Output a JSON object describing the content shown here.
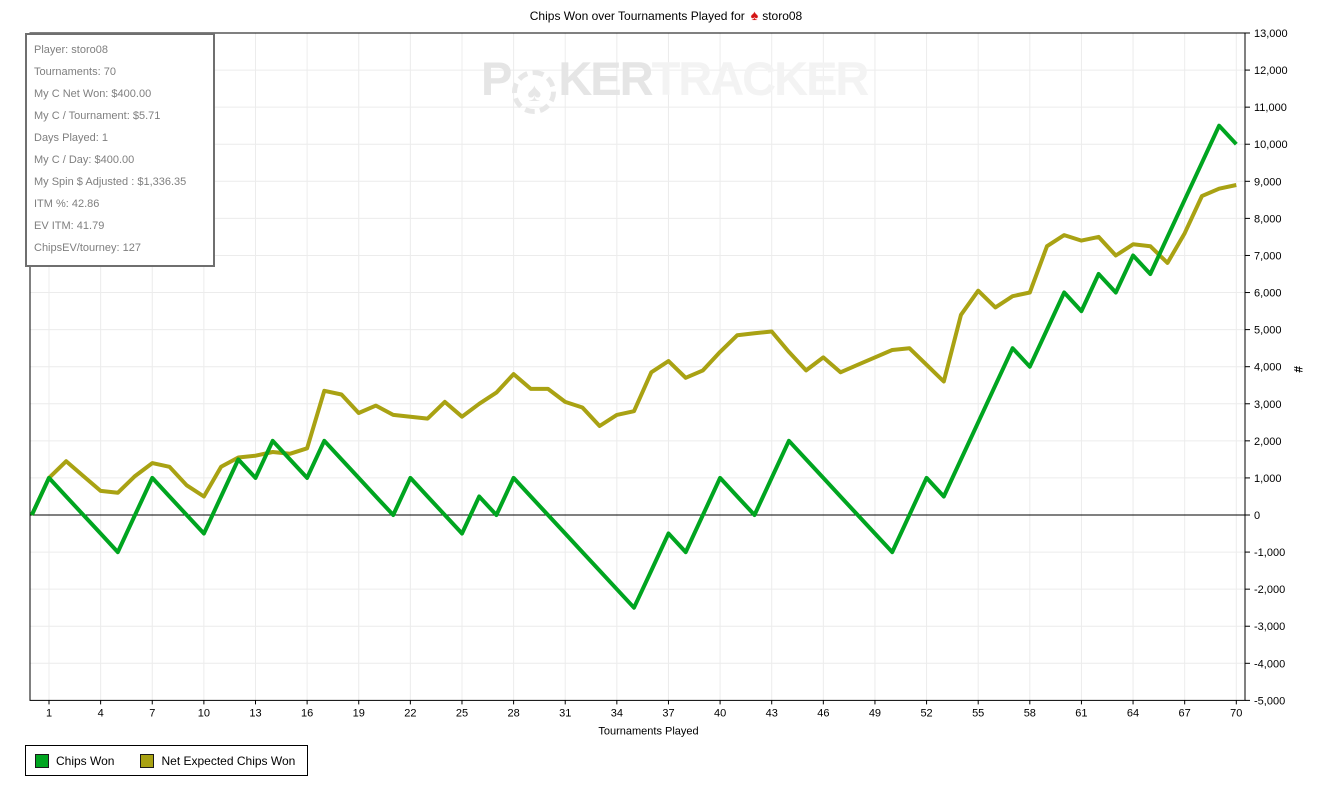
{
  "title": {
    "prefix": "Chips Won over Tournaments Played for",
    "player": "storo08",
    "icon": "red-spade"
  },
  "watermark": {
    "part1": "P",
    "chip_icon": "spade-poker-chip",
    "part2": "KER",
    "part3": "TRACKER"
  },
  "stats_box": {
    "lines": [
      "Player: storo08",
      "Tournaments: 70",
      "My C Net Won: $400.00",
      "My C / Tournament: $5.71",
      "Days Played: 1",
      "My C / Day: $400.00",
      "My Spin $ Adjusted : $1,336.35",
      "ITM %: 42.86",
      "EV ITM: 41.79",
      "ChipsEV/tourney: 127"
    ]
  },
  "legend": {
    "items": [
      {
        "label": "Chips Won",
        "color": "#00a520"
      },
      {
        "label": "Net Expected Chips Won",
        "color": "#a9a213"
      }
    ]
  },
  "colors": {
    "grid": "#ececec",
    "axis": "#000000",
    "chips_won": "#00a520",
    "net_expected": "#a9a213"
  },
  "chart_data": {
    "type": "line",
    "title": "Chips Won over Tournaments Played for ♠ storo08",
    "xlabel": "Tournaments Played",
    "ylabel": "#",
    "xlim": [
      0,
      70
    ],
    "ylim": [
      -5000,
      13000
    ],
    "grid": true,
    "legend_position": "bottom-left",
    "x_ticks": [
      1,
      4,
      7,
      10,
      13,
      16,
      19,
      22,
      25,
      28,
      31,
      34,
      37,
      40,
      43,
      46,
      49,
      52,
      55,
      58,
      61,
      64,
      67,
      70
    ],
    "y_ticks": [
      13000,
      12000,
      11000,
      10000,
      9000,
      8000,
      7000,
      6000,
      5000,
      4000,
      3000,
      2000,
      1000,
      0,
      -1000,
      -2000,
      -3000,
      -4000,
      -5000
    ],
    "series": [
      {
        "name": "Chips Won",
        "color": "#00a520",
        "x_start": 0,
        "values": [
          0,
          1000,
          500,
          0,
          -500,
          -1000,
          0,
          1000,
          500,
          0,
          -500,
          500,
          1500,
          1000,
          2000,
          1500,
          1000,
          2000,
          1500,
          1000,
          500,
          0,
          1000,
          500,
          0,
          -500,
          500,
          0,
          1000,
          500,
          0,
          -500,
          -1000,
          -1500,
          -2000,
          -2500,
          -1500,
          -500,
          -1000,
          0,
          1000,
          500,
          0,
          1000,
          2000,
          1500,
          1000,
          500,
          0,
          -500,
          -1000,
          0,
          1000,
          500,
          1500,
          2500,
          3500,
          4500,
          4000,
          5000,
          6000,
          5500,
          6500,
          6000,
          7000,
          6500,
          7500,
          8500,
          9500,
          10500,
          10000
        ]
      },
      {
        "name": "Net Expected Chips Won",
        "color": "#a9a213",
        "x_start": 0,
        "values": [
          0,
          1000,
          1450,
          1050,
          650,
          600,
          1050,
          1400,
          1300,
          800,
          500,
          1300,
          1550,
          1600,
          1700,
          1650,
          1800,
          3350,
          3250,
          2750,
          2950,
          2700,
          2650,
          2600,
          3050,
          2650,
          3000,
          3300,
          3800,
          3400,
          3400,
          3050,
          2900,
          2400,
          2700,
          2800,
          3850,
          4150,
          3700,
          3900,
          4400,
          4850,
          4900,
          4950,
          4400,
          3900,
          4250,
          3850,
          4050,
          4250,
          4450,
          4500,
          4050,
          3600,
          5400,
          6050,
          5600,
          5900,
          6000,
          7250,
          7550,
          7400,
          7500,
          7000,
          7300,
          7250,
          6800,
          7600,
          8600,
          8800,
          8900
        ]
      }
    ]
  }
}
